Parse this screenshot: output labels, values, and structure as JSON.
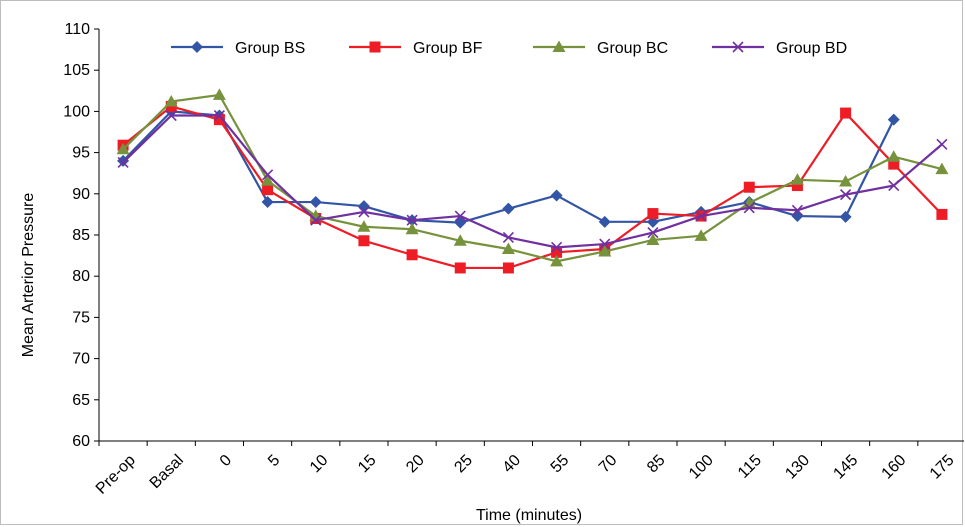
{
  "chart_data": {
    "type": "line",
    "title": "",
    "xlabel": "Time (minutes)",
    "ylabel": "Mean Arterior Pressure",
    "categories": [
      "Pre-op",
      "Basal",
      "0",
      "5",
      "10",
      "15",
      "20",
      "25",
      "40",
      "55",
      "70",
      "85",
      "100",
      "115",
      "130",
      "145",
      "160",
      "175"
    ],
    "ylim": [
      60,
      110
    ],
    "yticks": [
      60,
      65,
      70,
      75,
      80,
      85,
      90,
      95,
      100,
      105,
      110
    ],
    "grid": false,
    "legend_position": "top",
    "series": [
      {
        "name": "Group BS",
        "color": "#3355a5",
        "marker": "diamond",
        "values": [
          94,
          100,
          99.5,
          89,
          89,
          88.5,
          86.8,
          86.5,
          88.2,
          89.8,
          86.6,
          86.6,
          87.8,
          89,
          87.3,
          87.2,
          99,
          null
        ]
      },
      {
        "name": "Group BF",
        "color": "#ee1c25",
        "marker": "square",
        "values": [
          95.9,
          100.6,
          99,
          90.5,
          87,
          84.3,
          82.6,
          81,
          81,
          82.9,
          83.3,
          87.6,
          87.3,
          90.8,
          91,
          99.8,
          93.6,
          87.5
        ]
      },
      {
        "name": "Group BC",
        "color": "#76923c",
        "marker": "triangle",
        "values": [
          95.4,
          101.2,
          102,
          91.6,
          87.3,
          86,
          85.7,
          84.3,
          83.3,
          81.8,
          83,
          84.4,
          84.9,
          88.9,
          91.7,
          91.5,
          94.5,
          93
        ]
      },
      {
        "name": "Group BD",
        "color": "#7030a0",
        "marker": "x",
        "values": [
          93.8,
          99.5,
          99.5,
          92.3,
          86.8,
          87.8,
          86.8,
          87.3,
          84.7,
          83.5,
          83.9,
          85.3,
          87.3,
          88.3,
          88,
          89.9,
          91,
          96
        ]
      }
    ]
  }
}
